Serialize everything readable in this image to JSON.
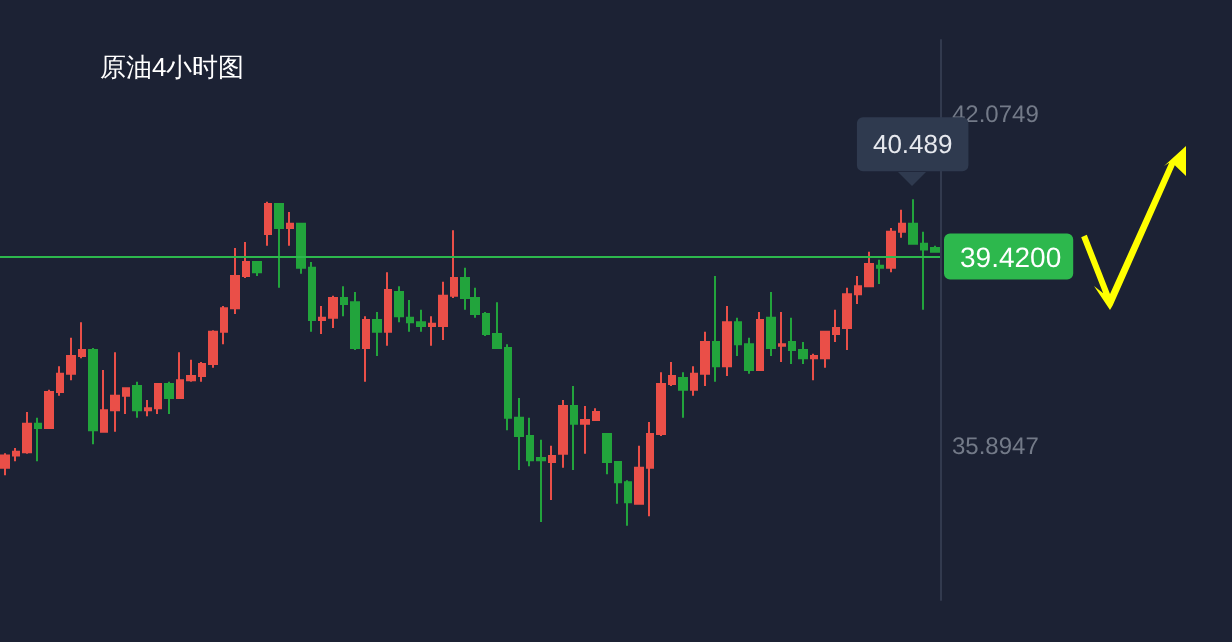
{
  "chart_data": {
    "type": "candlestick",
    "title": "原油4小时图",
    "categories": [
      null,
      null,
      null,
      null,
      null,
      null,
      null,
      null,
      null,
      null,
      null,
      null,
      null,
      null,
      null,
      null,
      null,
      null,
      null,
      null,
      null,
      null,
      null,
      null,
      null,
      null,
      null,
      null,
      null,
      null,
      null,
      null,
      null,
      null,
      null,
      null,
      null,
      null,
      null,
      null,
      null,
      null,
      null,
      null,
      null,
      null,
      null,
      null,
      null,
      null,
      null,
      null,
      null,
      null,
      null,
      null,
      null,
      null,
      null,
      null,
      null,
      null,
      null,
      null,
      null,
      null,
      null,
      null,
      null,
      null,
      null,
      null,
      null,
      null,
      null,
      null,
      null,
      null,
      null,
      null,
      null,
      null,
      null,
      null,
      null,
      null
    ],
    "ohlc": [
      [
        35.49,
        35.76,
        35.35,
        35.72
      ],
      [
        35.72,
        35.86,
        35.61,
        35.79
      ],
      [
        35.78,
        36.53,
        35.75,
        36.31
      ],
      [
        36.31,
        36.42,
        35.61,
        36.23
      ],
      [
        36.23,
        36.94,
        36.23,
        36.9
      ],
      [
        36.9,
        37.38,
        36.83,
        37.24
      ],
      [
        37.24,
        37.91,
        37.12,
        37.57
      ],
      [
        37.57,
        38.2,
        37.53,
        37.68
      ],
      [
        37.68,
        37.72,
        35.93,
        36.19
      ],
      [
        36.16,
        37.31,
        36.16,
        36.56
      ],
      [
        36.56,
        37.64,
        36.16,
        36.83
      ],
      [
        36.83,
        36.97,
        36.49,
        36.97
      ],
      [
        37.01,
        37.09,
        36.42,
        36.56
      ],
      [
        36.56,
        36.75,
        36.45,
        36.6
      ],
      [
        36.6,
        37.05,
        36.49,
        37.05
      ],
      [
        37.05,
        37.09,
        36.49,
        36.79
      ],
      [
        36.79,
        37.64,
        36.79,
        37.12
      ],
      [
        37.12,
        37.5,
        37.09,
        37.2
      ],
      [
        37.2,
        37.46,
        37.09,
        37.42
      ],
      [
        37.42,
        38.05,
        37.35,
        38.02
      ],
      [
        38.02,
        38.5,
        37.79,
        38.46
      ],
      [
        38.46,
        39.58,
        38.35,
        39.06
      ],
      [
        39.06,
        39.69,
        39.02,
        39.32
      ],
      [
        39.32,
        39.32,
        39.06,
        39.13
      ],
      [
        39.84,
        40.44,
        39.62,
        40.4
      ],
      [
        40.4,
        40.4,
        38.84,
        39.95
      ],
      [
        39.95,
        40.25,
        39.62,
        40.03
      ],
      [
        40.03,
        40.03,
        39.1,
        39.21
      ],
      [
        39.21,
        39.32,
        38.02,
        38.24
      ],
      [
        38.24,
        38.5,
        37.98,
        38.28
      ],
      [
        38.28,
        38.69,
        38.09,
        38.65
      ],
      [
        38.65,
        38.87,
        38.31,
        38.54
      ],
      [
        38.57,
        38.76,
        37.68,
        37.72
      ],
      [
        37.72,
        38.31,
        37.09,
        38.24
      ],
      [
        38.24,
        38.39,
        37.57,
        38.02
      ],
      [
        38.02,
        39.13,
        37.76,
        38.8
      ],
      [
        38.76,
        38.87,
        38.2,
        38.31
      ],
      [
        38.28,
        38.61,
        38.02,
        38.2
      ],
      [
        38.2,
        38.43,
        38.02,
        38.13
      ],
      [
        38.13,
        38.31,
        37.76,
        38.17
      ],
      [
        38.13,
        38.95,
        37.87,
        38.69
      ],
      [
        38.69,
        39.91,
        38.65,
        39.02
      ],
      [
        39.02,
        39.21,
        38.43,
        38.65
      ],
      [
        38.65,
        38.84,
        38.28,
        38.35
      ],
      [
        38.35,
        38.39,
        37.94,
        37.98
      ],
      [
        37.98,
        38.57,
        37.72,
        37.72
      ],
      [
        37.72,
        37.79,
        36.19,
        36.42
      ],
      [
        36.42,
        36.79,
        35.45,
        36.08
      ],
      [
        36.08,
        36.42,
        35.52,
        35.63
      ],
      [
        35.67,
        36.01,
        34.48,
        35.63
      ],
      [
        35.6,
        35.9,
        34.89,
        35.71
      ],
      [
        35.75,
        36.75,
        35.49,
        36.64
      ],
      [
        36.64,
        37.01,
        35.45,
        36.31
      ],
      [
        36.31,
        36.64,
        35.75,
        36.38
      ],
      [
        36.38,
        36.6,
        36.38,
        36.53
      ],
      [
        36.12,
        36.12,
        35.37,
        35.6
      ],
      [
        35.6,
        35.6,
        34.82,
        35.22
      ],
      [
        35.22,
        35.26,
        34.41,
        34.85
      ],
      [
        34.82,
        35.9,
        34.82,
        35.49
      ],
      [
        35.49,
        36.34,
        34.59,
        36.12
      ],
      [
        36.12,
        37.27,
        36.08,
        37.05
      ],
      [
        37.05,
        37.46,
        37.01,
        37.2
      ],
      [
        37.16,
        37.27,
        36.42,
        36.94
      ],
      [
        36.94,
        37.38,
        36.83,
        37.24
      ],
      [
        37.24,
        38.02,
        37.01,
        37.83
      ],
      [
        37.83,
        39.06,
        37.09,
        37.38
      ],
      [
        37.38,
        38.5,
        37.2,
        38.2
      ],
      [
        38.2,
        38.28,
        37.57,
        37.79
      ],
      [
        37.79,
        37.91,
        37.24,
        37.31
      ],
      [
        37.31,
        38.39,
        37.31,
        38.24
      ],
      [
        38.28,
        38.76,
        37.57,
        37.72
      ],
      [
        37.76,
        38.39,
        37.46,
        37.79
      ],
      [
        37.83,
        38.28,
        37.42,
        37.68
      ],
      [
        37.68,
        37.83,
        37.42,
        37.53
      ],
      [
        37.53,
        37.61,
        37.12,
        37.57
      ],
      [
        37.53,
        38.02,
        37.35,
        38.02
      ],
      [
        37.98,
        38.43,
        37.83,
        38.09
      ],
      [
        38.09,
        38.84,
        37.68,
        38.72
      ],
      [
        38.72,
        39.06,
        38.54,
        38.87
      ],
      [
        38.87,
        39.51,
        38.87,
        39.28
      ],
      [
        39.25,
        39.36,
        38.91,
        39.21
      ],
      [
        39.21,
        39.95,
        39.13,
        39.88
      ],
      [
        39.88,
        40.29,
        39.77,
        40.03
      ],
      [
        40.03,
        40.489,
        39.66,
        39.66
      ],
      [
        39.66,
        39.88,
        38.43,
        39.55
      ],
      [
        39.58,
        39.62,
        39.51,
        39.51
      ]
    ],
    "colors": [
      "#ea4f48",
      "#ea4f48",
      "#ea4f48",
      "#22a43c",
      "#ea4f48",
      "#ea4f48",
      "#ea4f48",
      "#ea4f48",
      "#22a43c",
      "#ea4f48",
      "#ea4f48",
      "#ea4f48",
      "#22a43c",
      "#ea4f48",
      "#ea4f48",
      "#22a43c",
      "#ea4f48",
      "#ea4f48",
      "#ea4f48",
      "#ea4f48",
      "#ea4f48",
      "#ea4f48",
      "#ea4f48",
      "#22a43c",
      "#ea4f48",
      "#22a43c",
      "#ea4f48",
      "#22a43c",
      "#22a43c",
      "#ea4f48",
      "#ea4f48",
      "#22a43c",
      "#22a43c",
      "#ea4f48",
      "#22a43c",
      "#ea4f48",
      "#22a43c",
      "#22a43c",
      "#22a43c",
      "#ea4f48",
      "#ea4f48",
      "#ea4f48",
      "#22a43c",
      "#22a43c",
      "#22a43c",
      "#22a43c",
      "#22a43c",
      "#22a43c",
      "#22a43c",
      "#22a43c",
      "#ea4f48",
      "#ea4f48",
      "#22a43c",
      "#ea4f48",
      "#ea4f48",
      "#22a43c",
      "#22a43c",
      "#22a43c",
      "#ea4f48",
      "#ea4f48",
      "#ea4f48",
      "#ea4f48",
      "#22a43c",
      "#ea4f48",
      "#ea4f48",
      "#22a43c",
      "#ea4f48",
      "#22a43c",
      "#22a43c",
      "#ea4f48",
      "#22a43c",
      "#ea4f48",
      "#22a43c",
      "#22a43c",
      "#ea4f48",
      "#ea4f48",
      "#ea4f48",
      "#ea4f48",
      "#ea4f48",
      "#ea4f48",
      "#22a43c",
      "#ea4f48",
      "#ea4f48",
      "#22a43c",
      "#22a43c",
      "#22a43c"
    ],
    "ylim": [
      33.03,
      43.45
    ],
    "yticks": [
      42.0749,
      35.8947
    ],
    "ref_lines": [
      {
        "axis": "y",
        "value": 39.42,
        "label": "39.4200",
        "color": "#2db84d"
      }
    ],
    "annotations": [
      "40.489"
    ],
    "tick_labels": "y"
  }
}
